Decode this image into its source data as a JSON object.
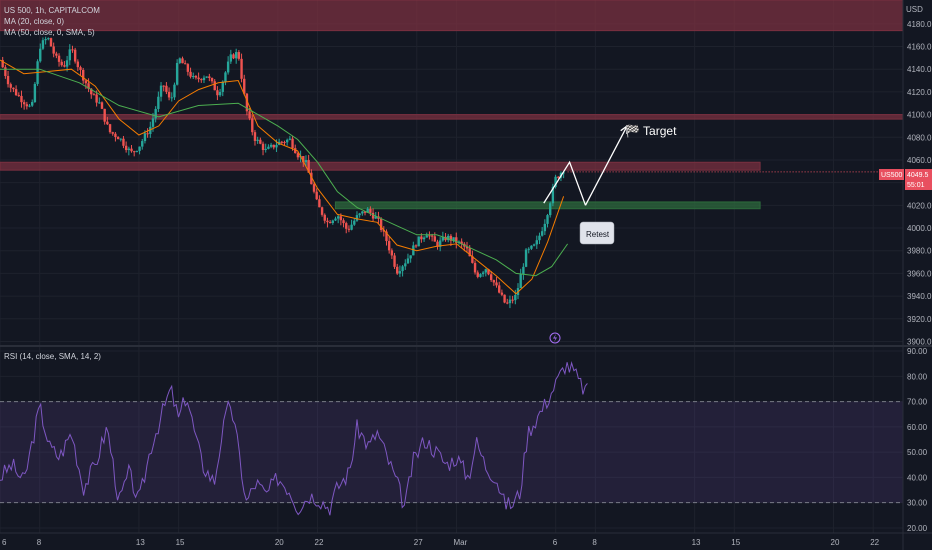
{
  "chart_data": [
    {
      "type": "candlestick",
      "symbol": "US 500, 1h, CAPITALCOM",
      "indicators": [
        "MA (20, close, 0)",
        "MA (50, close, 0, SMA, 5)"
      ],
      "currency": "USD",
      "price_ticks": [
        "4180.0",
        "4160.0",
        "4140.0",
        "4120.0",
        "4100.0",
        "4080.0",
        "4060.0",
        "4040.0",
        "4020.0",
        "4000.0",
        "3980.0",
        "3960.0",
        "3940.0",
        "3920.0",
        "3900.0"
      ],
      "ylim": [
        3896,
        4201
      ],
      "time_ticks": [
        {
          "label": "6",
          "t": 0
        },
        {
          "label": "8",
          "t": 2
        },
        {
          "label": "13",
          "t": 7
        },
        {
          "label": "15",
          "t": 9
        },
        {
          "label": "20",
          "t": 14
        },
        {
          "label": "22",
          "t": 16
        },
        {
          "label": "27",
          "t": 21
        },
        {
          "label": "Mar",
          "t": 23
        },
        {
          "label": "6",
          "t": 28
        },
        {
          "label": "8",
          "t": 30
        },
        {
          "label": "13",
          "t": 35
        },
        {
          "label": "15",
          "t": 37
        },
        {
          "label": "20",
          "t": 42
        },
        {
          "label": "22",
          "t": 44
        }
      ],
      "price_path": [
        [
          0,
          4148
        ],
        [
          0.5,
          4125
        ],
        [
          1,
          4115
        ],
        [
          1.6,
          4105
        ],
        [
          2,
          4160
        ],
        [
          2.4,
          4168
        ],
        [
          2.8,
          4150
        ],
        [
          3.2,
          4142
        ],
        [
          3.6,
          4158
        ],
        [
          4,
          4140
        ],
        [
          4.6,
          4118
        ],
        [
          5,
          4110
        ],
        [
          5.5,
          4085
        ],
        [
          6,
          4080
        ],
        [
          6.6,
          4066
        ],
        [
          7,
          4072
        ],
        [
          7.6,
          4090
        ],
        [
          8.2,
          4128
        ],
        [
          8.6,
          4110
        ],
        [
          9,
          4150
        ],
        [
          9.4,
          4140
        ],
        [
          9.8,
          4130
        ],
        [
          10.4,
          4135
        ],
        [
          11,
          4118
        ],
        [
          11.6,
          4150
        ],
        [
          12,
          4155
        ],
        [
          12.4,
          4105
        ],
        [
          12.8,
          4080
        ],
        [
          13.4,
          4068
        ],
        [
          14,
          4075
        ],
        [
          14.6,
          4078
        ],
        [
          15,
          4065
        ],
        [
          15.4,
          4058
        ],
        [
          16,
          4020
        ],
        [
          16.5,
          4005
        ],
        [
          17,
          4012
        ],
        [
          17.5,
          3998
        ],
        [
          18,
          4010
        ],
        [
          18.5,
          4016
        ],
        [
          19,
          4008
        ],
        [
          19.5,
          3988
        ],
        [
          20,
          3962
        ],
        [
          20.5,
          3972
        ],
        [
          21,
          3988
        ],
        [
          21.5,
          3996
        ],
        [
          22,
          3985
        ],
        [
          22.5,
          3992
        ],
        [
          23,
          3988
        ],
        [
          23.5,
          3982
        ],
        [
          24,
          3958
        ],
        [
          24.5,
          3965
        ],
        [
          25,
          3948
        ],
        [
          25.5,
          3932
        ],
        [
          26,
          3940
        ],
        [
          26.5,
          3978
        ],
        [
          27,
          3985
        ],
        [
          27.5,
          4008
        ],
        [
          28,
          4044
        ],
        [
          28.4,
          4052
        ]
      ],
      "ma20_path": [
        [
          0,
          4148
        ],
        [
          1.2,
          4136
        ],
        [
          2.4,
          4138
        ],
        [
          3.6,
          4140
        ],
        [
          4.8,
          4125
        ],
        [
          6,
          4096
        ],
        [
          7,
          4082
        ],
        [
          8,
          4090
        ],
        [
          9,
          4112
        ],
        [
          10,
          4122
        ],
        [
          11,
          4128
        ],
        [
          12,
          4130
        ],
        [
          13,
          4090
        ],
        [
          14,
          4075
        ],
        [
          15,
          4068
        ],
        [
          16,
          4035
        ],
        [
          17,
          4012
        ],
        [
          18,
          4008
        ],
        [
          19,
          4005
        ],
        [
          20,
          3985
        ],
        [
          21,
          3980
        ],
        [
          22,
          3984
        ],
        [
          23,
          3986
        ],
        [
          24,
          3972
        ],
        [
          25,
          3958
        ],
        [
          26,
          3942
        ],
        [
          26.8,
          3955
        ],
        [
          27.6,
          3988
        ],
        [
          28.4,
          4028
        ]
      ],
      "ma50_path": [
        [
          0,
          4140
        ],
        [
          2,
          4140
        ],
        [
          4,
          4128
        ],
        [
          6,
          4108
        ],
        [
          8,
          4098
        ],
        [
          10,
          4108
        ],
        [
          12,
          4110
        ],
        [
          13,
          4100
        ],
        [
          14,
          4090
        ],
        [
          15,
          4078
        ],
        [
          16,
          4058
        ],
        [
          17,
          4032
        ],
        [
          18,
          4018
        ],
        [
          19,
          4010
        ],
        [
          20,
          4002
        ],
        [
          21,
          3994
        ],
        [
          22,
          3994
        ],
        [
          23,
          3988
        ],
        [
          24,
          3980
        ],
        [
          25,
          3972
        ],
        [
          26,
          3960
        ],
        [
          27,
          3958
        ],
        [
          27.8,
          3966
        ],
        [
          28.6,
          3986
        ]
      ],
      "zones": [
        {
          "name": "top-resistance-zone",
          "y1": 4174,
          "y2": 4201,
          "t1": 0,
          "t2": 45.5,
          "color": "#7a3040"
        },
        {
          "name": "upper-resistance-zone",
          "y1": 4096,
          "y2": 4100,
          "t1": 0,
          "t2": 45.5,
          "color": "#7a3040"
        },
        {
          "name": "resistance-zone",
          "y1": 4051,
          "y2": 4058,
          "t1": 0,
          "t2": 38.3,
          "color": "#7a3040"
        },
        {
          "name": "support-zone",
          "y1": 4017,
          "y2": 4023,
          "t1": 16.9,
          "t2": 38.3,
          "color": "#2d6a3c"
        }
      ],
      "projection": [
        [
          27.4,
          4022
        ],
        [
          28.7,
          4058
        ],
        [
          29.5,
          4020
        ],
        [
          31.6,
          4090
        ]
      ],
      "target_label": "🏁 Target",
      "retest_label": "Retest",
      "current_price": {
        "symbol": "US500",
        "price": "4049.5",
        "countdown": "55:01",
        "value": 4049.5
      }
    },
    {
      "type": "line",
      "title": "RSI (14, close, SMA, 14, 2)",
      "ticks": [
        "90.00",
        "80.00",
        "70.00",
        "60.00",
        "50.00",
        "40.00",
        "30.00",
        "20.00"
      ],
      "ylim": [
        18,
        92
      ],
      "upper_band": 70,
      "lower_band": 30,
      "rsi_path": [
        [
          0,
          40
        ],
        [
          0.6,
          45
        ],
        [
          1.2,
          38
        ],
        [
          2,
          68
        ],
        [
          2.5,
          52
        ],
        [
          3,
          48
        ],
        [
          3.6,
          58
        ],
        [
          4.2,
          36
        ],
        [
          4.8,
          45
        ],
        [
          5.4,
          60
        ],
        [
          6,
          30
        ],
        [
          6.5,
          42
        ],
        [
          7,
          30
        ],
        [
          7.6,
          52
        ],
        [
          8.2,
          66
        ],
        [
          8.6,
          75
        ],
        [
          9,
          63
        ],
        [
          9.4,
          73
        ],
        [
          9.8,
          58
        ],
        [
          10.2,
          45
        ],
        [
          10.8,
          38
        ],
        [
          11.2,
          58
        ],
        [
          11.6,
          70
        ],
        [
          12,
          52
        ],
        [
          12.4,
          30
        ],
        [
          12.9,
          38
        ],
        [
          13.4,
          33
        ],
        [
          14,
          40
        ],
        [
          14.6,
          35
        ],
        [
          15,
          28
        ],
        [
          15.6,
          33
        ],
        [
          16,
          32
        ],
        [
          16.6,
          28
        ],
        [
          17,
          36
        ],
        [
          17.6,
          42
        ],
        [
          18,
          60
        ],
        [
          18.6,
          52
        ],
        [
          19,
          58
        ],
        [
          19.6,
          46
        ],
        [
          20,
          38
        ],
        [
          20.4,
          28
        ],
        [
          20.8,
          46
        ],
        [
          21.4,
          55
        ],
        [
          22,
          50
        ],
        [
          22.5,
          45
        ],
        [
          23,
          48
        ],
        [
          23.6,
          40
        ],
        [
          24,
          54
        ],
        [
          24.5,
          44
        ],
        [
          25,
          40
        ],
        [
          25.4,
          30
        ],
        [
          25.8,
          29
        ],
        [
          26.2,
          34
        ],
        [
          26.6,
          58
        ],
        [
          27,
          63
        ],
        [
          27.4,
          68
        ],
        [
          27.8,
          74
        ],
        [
          28.2,
          80
        ],
        [
          28.5,
          85
        ],
        [
          28.9,
          82
        ],
        [
          29.3,
          76
        ],
        [
          29.6,
          74
        ]
      ]
    }
  ]
}
